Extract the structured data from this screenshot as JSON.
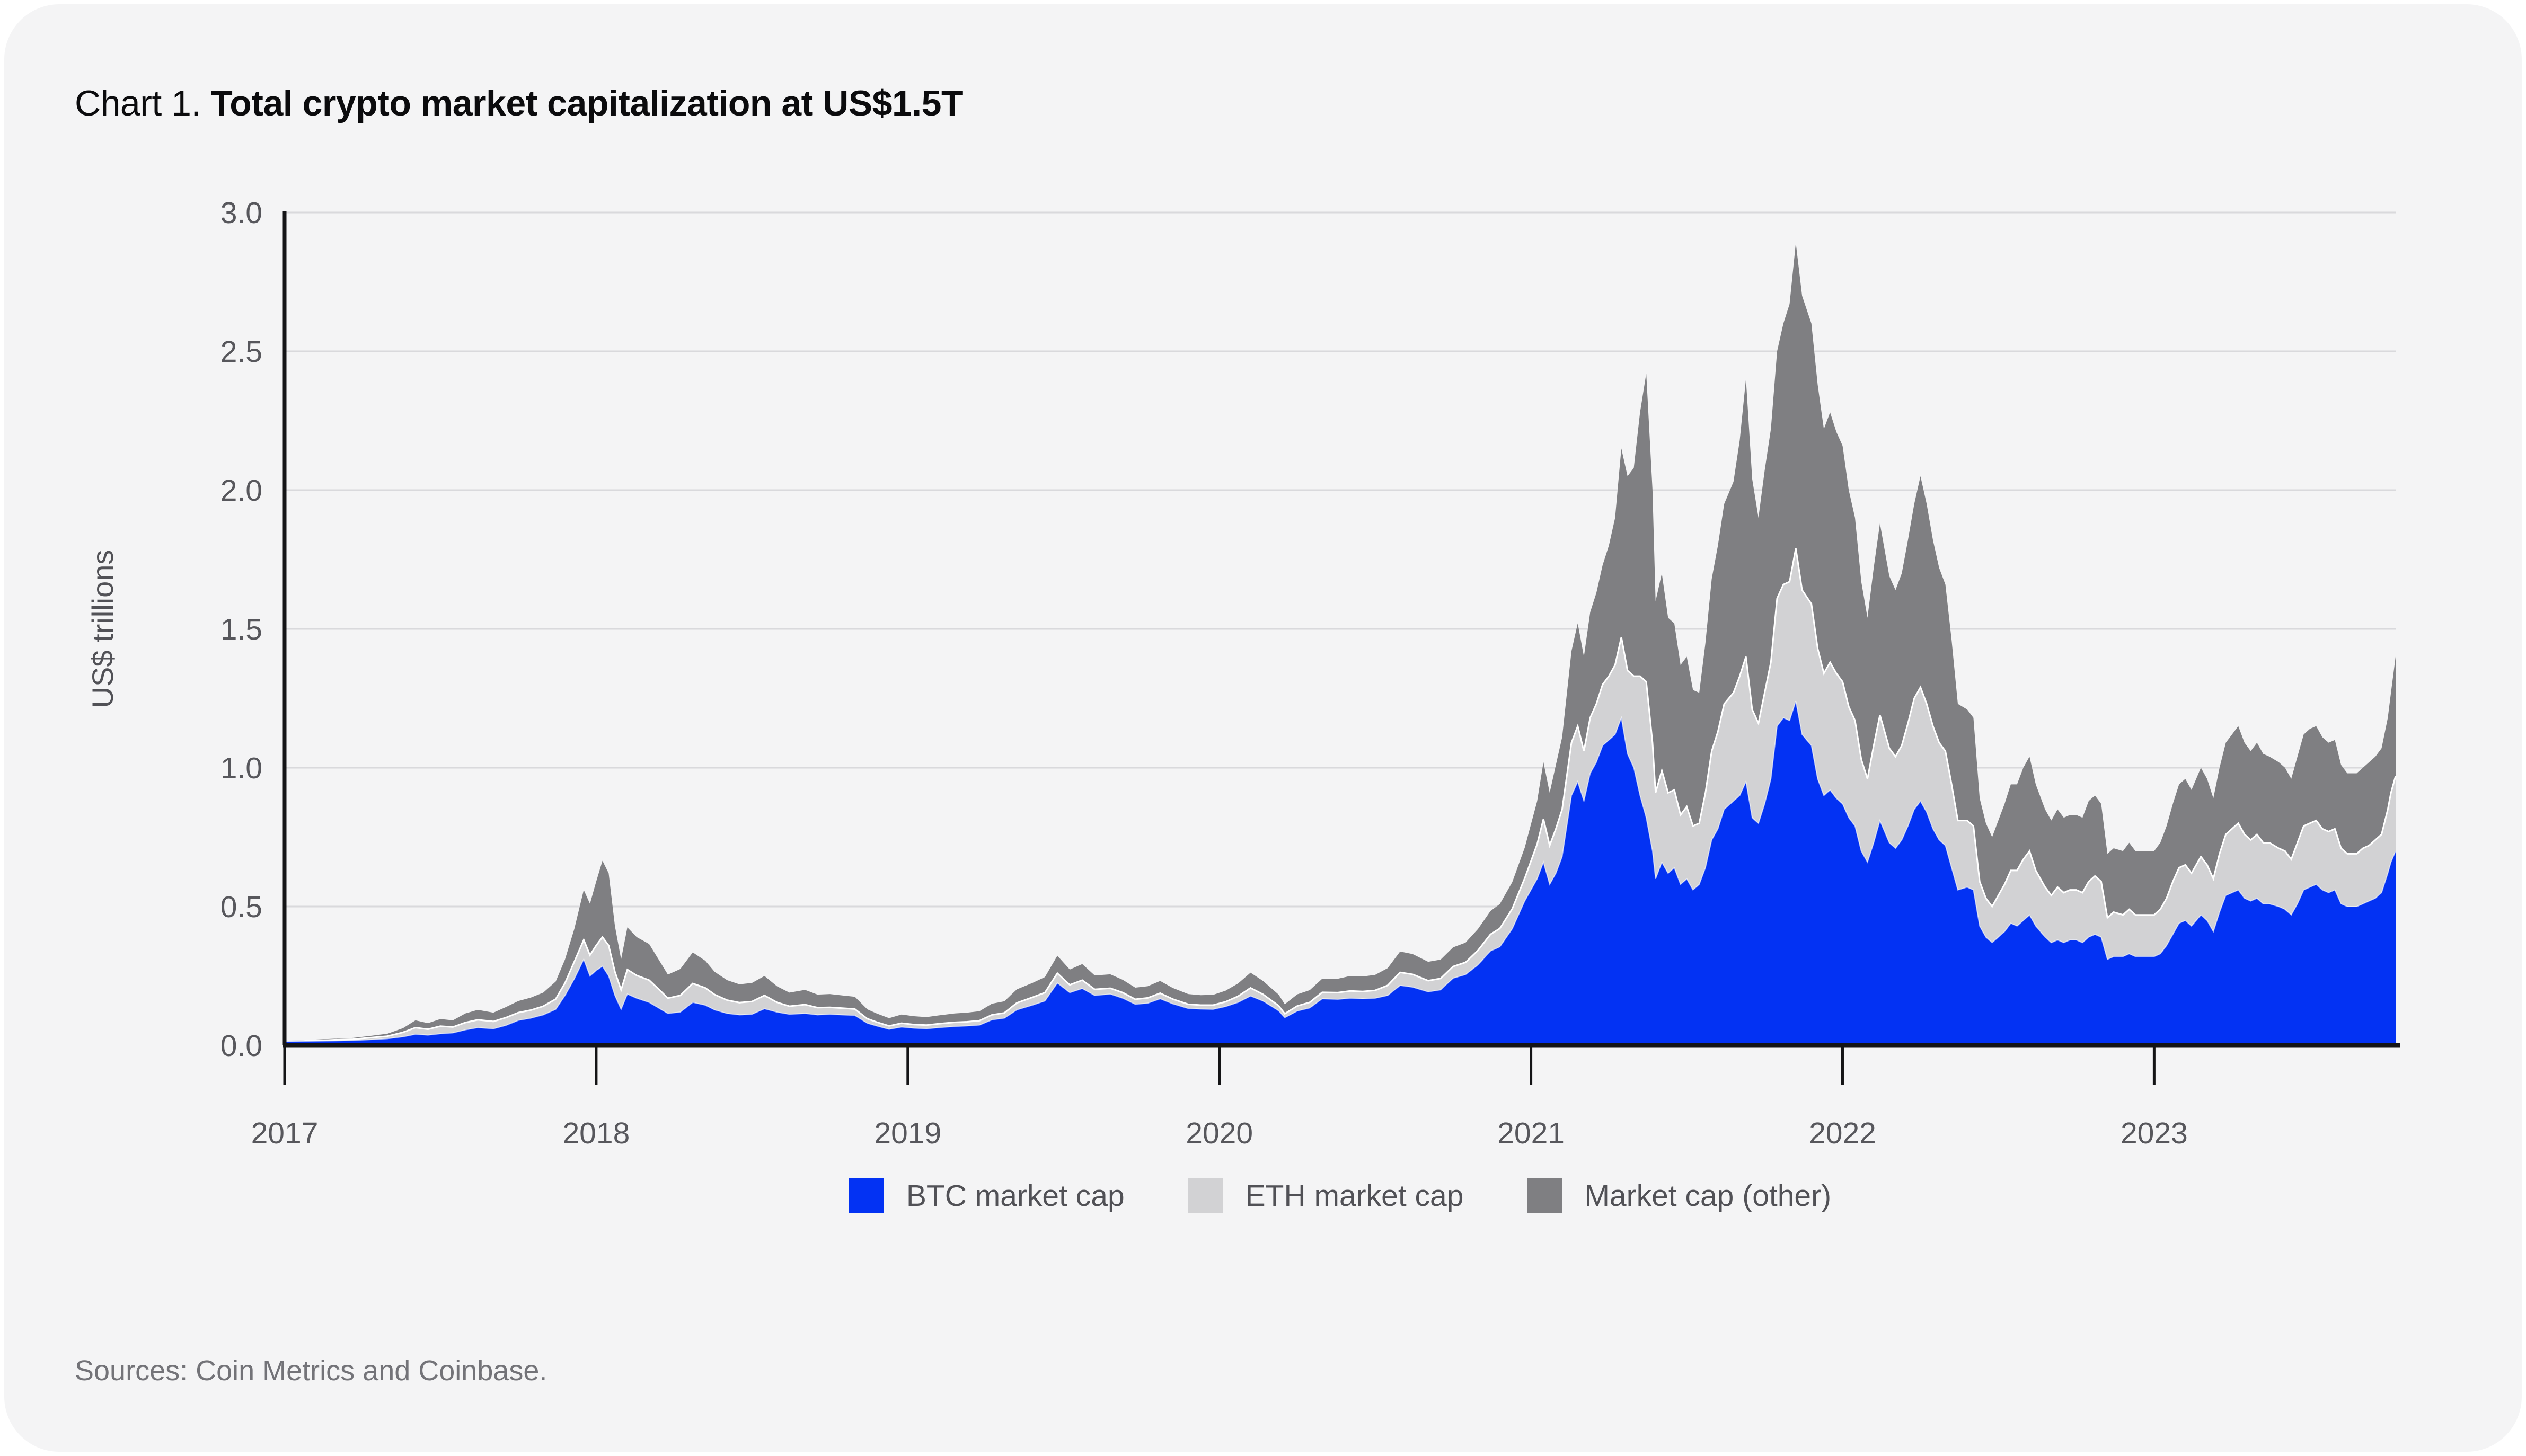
{
  "page": {
    "title_prefix": "Chart 1. ",
    "title_main": "Total crypto market capitalization at US$1.5T",
    "sources": "Sources: Coin Metrics and Coinbase."
  },
  "colors": {
    "card_bg": "#f4f4f5",
    "grid": "#d9d9dc",
    "axis": "#141416",
    "tick_text": "#57575c",
    "axis_title_text": "#515156",
    "series_btc": "#0332f3",
    "series_eth": "#d2d2d4",
    "series_other": "#7f7f82",
    "layer_separator": "#ffffff"
  },
  "chart_data": {
    "type": "area",
    "stacked": true,
    "title": "Total crypto market capitalization at US$1.5T",
    "xlabel": "",
    "ylabel": "US$ trillions",
    "ylim": [
      0,
      3.0
    ],
    "yticks": [
      0.0,
      0.5,
      1.0,
      1.5,
      2.0,
      2.5,
      3.0
    ],
    "xlim": [
      2017.0,
      2023.775
    ],
    "xticks": [
      2017,
      2018,
      2019,
      2020,
      2021,
      2022,
      2023
    ],
    "grid": true,
    "legend_position": "bottom",
    "units": "US$ trillions",
    "series": [
      {
        "key": "btc",
        "name": "BTC market cap",
        "color": "#0332f3"
      },
      {
        "key": "eth",
        "name": "ETH market cap",
        "color": "#d2d2d4"
      },
      {
        "key": "other",
        "name": "Market cap (other)",
        "color": "#7f7f82"
      }
    ],
    "points_format": [
      "year_decimal",
      "btc",
      "eth",
      "other"
    ],
    "points": [
      [
        2017.0,
        0.014,
        0.001,
        0.003
      ],
      [
        2017.06,
        0.015,
        0.001,
        0.003
      ],
      [
        2017.12,
        0.016,
        0.002,
        0.004
      ],
      [
        2017.18,
        0.017,
        0.004,
        0.004
      ],
      [
        2017.22,
        0.018,
        0.004,
        0.005
      ],
      [
        2017.28,
        0.021,
        0.007,
        0.007
      ],
      [
        2017.33,
        0.024,
        0.009,
        0.009
      ],
      [
        2017.38,
        0.031,
        0.016,
        0.015
      ],
      [
        2017.42,
        0.04,
        0.024,
        0.026
      ],
      [
        2017.46,
        0.037,
        0.021,
        0.022
      ],
      [
        2017.5,
        0.042,
        0.027,
        0.026
      ],
      [
        2017.54,
        0.045,
        0.021,
        0.024
      ],
      [
        2017.58,
        0.056,
        0.026,
        0.033
      ],
      [
        2017.62,
        0.064,
        0.028,
        0.036
      ],
      [
        2017.67,
        0.06,
        0.026,
        0.032
      ],
      [
        2017.71,
        0.072,
        0.028,
        0.038
      ],
      [
        2017.75,
        0.09,
        0.028,
        0.042
      ],
      [
        2017.79,
        0.098,
        0.029,
        0.045
      ],
      [
        2017.83,
        0.11,
        0.031,
        0.049
      ],
      [
        2017.87,
        0.13,
        0.037,
        0.063
      ],
      [
        2017.9,
        0.18,
        0.045,
        0.085
      ],
      [
        2017.93,
        0.24,
        0.062,
        0.118
      ],
      [
        2017.96,
        0.31,
        0.07,
        0.18
      ],
      [
        2017.98,
        0.25,
        0.075,
        0.185
      ],
      [
        2018.0,
        0.27,
        0.09,
        0.23
      ],
      [
        2018.02,
        0.285,
        0.105,
        0.275
      ],
      [
        2018.04,
        0.25,
        0.11,
        0.26
      ],
      [
        2018.06,
        0.18,
        0.085,
        0.165
      ],
      [
        2018.08,
        0.13,
        0.07,
        0.11
      ],
      [
        2018.1,
        0.185,
        0.088,
        0.152
      ],
      [
        2018.13,
        0.17,
        0.082,
        0.138
      ],
      [
        2018.17,
        0.155,
        0.08,
        0.13
      ],
      [
        2018.2,
        0.135,
        0.068,
        0.107
      ],
      [
        2018.23,
        0.115,
        0.055,
        0.085
      ],
      [
        2018.27,
        0.12,
        0.06,
        0.095
      ],
      [
        2018.31,
        0.155,
        0.068,
        0.112
      ],
      [
        2018.35,
        0.145,
        0.062,
        0.098
      ],
      [
        2018.38,
        0.128,
        0.055,
        0.082
      ],
      [
        2018.42,
        0.115,
        0.048,
        0.072
      ],
      [
        2018.46,
        0.11,
        0.044,
        0.066
      ],
      [
        2018.5,
        0.112,
        0.046,
        0.067
      ],
      [
        2018.54,
        0.132,
        0.048,
        0.07
      ],
      [
        2018.58,
        0.12,
        0.035,
        0.058
      ],
      [
        2018.62,
        0.112,
        0.029,
        0.049
      ],
      [
        2018.67,
        0.115,
        0.032,
        0.053
      ],
      [
        2018.71,
        0.11,
        0.026,
        0.047
      ],
      [
        2018.75,
        0.112,
        0.025,
        0.048
      ],
      [
        2018.79,
        0.11,
        0.024,
        0.046
      ],
      [
        2018.83,
        0.108,
        0.023,
        0.044
      ],
      [
        2018.87,
        0.08,
        0.016,
        0.034
      ],
      [
        2018.9,
        0.07,
        0.014,
        0.031
      ],
      [
        2018.94,
        0.058,
        0.012,
        0.028
      ],
      [
        2018.98,
        0.066,
        0.014,
        0.031
      ],
      [
        2019.02,
        0.062,
        0.013,
        0.03
      ],
      [
        2019.06,
        0.06,
        0.013,
        0.029
      ],
      [
        2019.1,
        0.064,
        0.014,
        0.03
      ],
      [
        2019.15,
        0.068,
        0.015,
        0.032
      ],
      [
        2019.19,
        0.07,
        0.015,
        0.033
      ],
      [
        2019.23,
        0.073,
        0.016,
        0.034
      ],
      [
        2019.27,
        0.092,
        0.018,
        0.04
      ],
      [
        2019.31,
        0.098,
        0.019,
        0.042
      ],
      [
        2019.35,
        0.128,
        0.025,
        0.049
      ],
      [
        2019.4,
        0.145,
        0.028,
        0.052
      ],
      [
        2019.44,
        0.16,
        0.03,
        0.056
      ],
      [
        2019.48,
        0.225,
        0.035,
        0.063
      ],
      [
        2019.52,
        0.19,
        0.028,
        0.055
      ],
      [
        2019.56,
        0.205,
        0.03,
        0.058
      ],
      [
        2019.6,
        0.18,
        0.022,
        0.05
      ],
      [
        2019.65,
        0.185,
        0.021,
        0.05
      ],
      [
        2019.69,
        0.17,
        0.02,
        0.046
      ],
      [
        2019.73,
        0.148,
        0.018,
        0.042
      ],
      [
        2019.77,
        0.152,
        0.019,
        0.042
      ],
      [
        2019.81,
        0.168,
        0.02,
        0.044
      ],
      [
        2019.85,
        0.15,
        0.017,
        0.04
      ],
      [
        2019.9,
        0.133,
        0.015,
        0.037
      ],
      [
        2019.94,
        0.131,
        0.014,
        0.036
      ],
      [
        2019.98,
        0.13,
        0.015,
        0.037
      ],
      [
        2020.02,
        0.14,
        0.017,
        0.04
      ],
      [
        2020.06,
        0.155,
        0.022,
        0.046
      ],
      [
        2020.1,
        0.178,
        0.029,
        0.055
      ],
      [
        2020.14,
        0.16,
        0.024,
        0.048
      ],
      [
        2020.19,
        0.125,
        0.018,
        0.04
      ],
      [
        2020.21,
        0.1,
        0.014,
        0.034
      ],
      [
        2020.25,
        0.124,
        0.018,
        0.042
      ],
      [
        2020.29,
        0.135,
        0.02,
        0.044
      ],
      [
        2020.33,
        0.168,
        0.023,
        0.049
      ],
      [
        2020.38,
        0.166,
        0.024,
        0.05
      ],
      [
        2020.42,
        0.17,
        0.026,
        0.054
      ],
      [
        2020.46,
        0.168,
        0.026,
        0.054
      ],
      [
        2020.5,
        0.17,
        0.028,
        0.056
      ],
      [
        2020.54,
        0.18,
        0.036,
        0.062
      ],
      [
        2020.58,
        0.216,
        0.047,
        0.075
      ],
      [
        2020.62,
        0.21,
        0.046,
        0.073
      ],
      [
        2020.67,
        0.193,
        0.04,
        0.068
      ],
      [
        2020.71,
        0.2,
        0.041,
        0.068
      ],
      [
        2020.75,
        0.242,
        0.042,
        0.069
      ],
      [
        2020.79,
        0.255,
        0.044,
        0.071
      ],
      [
        2020.83,
        0.29,
        0.052,
        0.077
      ],
      [
        2020.87,
        0.34,
        0.06,
        0.084
      ],
      [
        2020.9,
        0.355,
        0.066,
        0.088
      ],
      [
        2020.94,
        0.42,
        0.072,
        0.096
      ],
      [
        2020.98,
        0.52,
        0.082,
        0.11
      ],
      [
        2021.02,
        0.6,
        0.125,
        0.155
      ],
      [
        2021.04,
        0.66,
        0.155,
        0.205
      ],
      [
        2021.06,
        0.58,
        0.14,
        0.19
      ],
      [
        2021.08,
        0.62,
        0.16,
        0.23
      ],
      [
        2021.1,
        0.68,
        0.17,
        0.26
      ],
      [
        2021.13,
        0.9,
        0.19,
        0.33
      ],
      [
        2021.15,
        0.95,
        0.2,
        0.37
      ],
      [
        2021.17,
        0.88,
        0.18,
        0.34
      ],
      [
        2021.19,
        0.98,
        0.2,
        0.38
      ],
      [
        2021.21,
        1.02,
        0.21,
        0.4
      ],
      [
        2021.23,
        1.08,
        0.22,
        0.43
      ],
      [
        2021.25,
        1.1,
        0.23,
        0.47
      ],
      [
        2021.27,
        1.12,
        0.25,
        0.53
      ],
      [
        2021.29,
        1.18,
        0.29,
        0.68
      ],
      [
        2021.31,
        1.05,
        0.3,
        0.7
      ],
      [
        2021.33,
        1.0,
        0.33,
        0.75
      ],
      [
        2021.35,
        0.9,
        0.43,
        0.95
      ],
      [
        2021.37,
        0.82,
        0.49,
        1.11
      ],
      [
        2021.39,
        0.7,
        0.39,
        0.91
      ],
      [
        2021.4,
        0.6,
        0.31,
        0.69
      ],
      [
        2021.42,
        0.66,
        0.33,
        0.71
      ],
      [
        2021.44,
        0.62,
        0.29,
        0.63
      ],
      [
        2021.46,
        0.64,
        0.28,
        0.6
      ],
      [
        2021.48,
        0.58,
        0.25,
        0.54
      ],
      [
        2021.5,
        0.6,
        0.26,
        0.54
      ],
      [
        2021.52,
        0.56,
        0.23,
        0.49
      ],
      [
        2021.54,
        0.58,
        0.22,
        0.47
      ],
      [
        2021.56,
        0.64,
        0.27,
        0.54
      ],
      [
        2021.58,
        0.74,
        0.32,
        0.62
      ],
      [
        2021.6,
        0.78,
        0.35,
        0.67
      ],
      [
        2021.62,
        0.85,
        0.38,
        0.72
      ],
      [
        2021.65,
        0.88,
        0.39,
        0.76
      ],
      [
        2021.67,
        0.9,
        0.43,
        0.85
      ],
      [
        2021.69,
        0.95,
        0.45,
        1.0
      ],
      [
        2021.71,
        0.82,
        0.39,
        0.83
      ],
      [
        2021.73,
        0.8,
        0.36,
        0.74
      ],
      [
        2021.75,
        0.87,
        0.4,
        0.8
      ],
      [
        2021.77,
        0.96,
        0.42,
        0.84
      ],
      [
        2021.79,
        1.15,
        0.46,
        0.89
      ],
      [
        2021.81,
        1.18,
        0.48,
        0.94
      ],
      [
        2021.83,
        1.17,
        0.5,
        1.0
      ],
      [
        2021.85,
        1.24,
        0.55,
        1.1
      ],
      [
        2021.87,
        1.12,
        0.52,
        1.06
      ],
      [
        2021.9,
        1.08,
        0.51,
        1.01
      ],
      [
        2021.92,
        0.96,
        0.47,
        0.95
      ],
      [
        2021.94,
        0.9,
        0.44,
        0.88
      ],
      [
        2021.96,
        0.92,
        0.46,
        0.9
      ],
      [
        2021.98,
        0.89,
        0.45,
        0.87
      ],
      [
        2022.0,
        0.87,
        0.44,
        0.85
      ],
      [
        2022.02,
        0.82,
        0.4,
        0.78
      ],
      [
        2022.04,
        0.79,
        0.38,
        0.73
      ],
      [
        2022.06,
        0.7,
        0.33,
        0.64
      ],
      [
        2022.08,
        0.66,
        0.3,
        0.58
      ],
      [
        2022.1,
        0.73,
        0.35,
        0.64
      ],
      [
        2022.12,
        0.81,
        0.38,
        0.69
      ],
      [
        2022.15,
        0.73,
        0.34,
        0.62
      ],
      [
        2022.17,
        0.71,
        0.33,
        0.6
      ],
      [
        2022.19,
        0.74,
        0.34,
        0.62
      ],
      [
        2022.21,
        0.79,
        0.37,
        0.66
      ],
      [
        2022.23,
        0.85,
        0.4,
        0.7
      ],
      [
        2022.25,
        0.88,
        0.41,
        0.76
      ],
      [
        2022.27,
        0.84,
        0.39,
        0.72
      ],
      [
        2022.29,
        0.78,
        0.37,
        0.67
      ],
      [
        2022.31,
        0.74,
        0.35,
        0.63
      ],
      [
        2022.33,
        0.72,
        0.34,
        0.6
      ],
      [
        2022.35,
        0.64,
        0.3,
        0.52
      ],
      [
        2022.37,
        0.56,
        0.25,
        0.42
      ],
      [
        2022.4,
        0.57,
        0.24,
        0.4
      ],
      [
        2022.42,
        0.56,
        0.23,
        0.39
      ],
      [
        2022.44,
        0.43,
        0.16,
        0.3
      ],
      [
        2022.46,
        0.39,
        0.14,
        0.27
      ],
      [
        2022.48,
        0.37,
        0.13,
        0.25
      ],
      [
        2022.5,
        0.39,
        0.15,
        0.27
      ],
      [
        2022.52,
        0.41,
        0.17,
        0.29
      ],
      [
        2022.54,
        0.44,
        0.19,
        0.31
      ],
      [
        2022.56,
        0.43,
        0.2,
        0.31
      ],
      [
        2022.58,
        0.45,
        0.22,
        0.33
      ],
      [
        2022.6,
        0.47,
        0.23,
        0.34
      ],
      [
        2022.62,
        0.43,
        0.2,
        0.31
      ],
      [
        2022.65,
        0.39,
        0.18,
        0.28
      ],
      [
        2022.67,
        0.37,
        0.17,
        0.27
      ],
      [
        2022.69,
        0.38,
        0.19,
        0.28
      ],
      [
        2022.71,
        0.37,
        0.18,
        0.27
      ],
      [
        2022.73,
        0.38,
        0.18,
        0.27
      ],
      [
        2022.75,
        0.38,
        0.18,
        0.27
      ],
      [
        2022.77,
        0.37,
        0.18,
        0.27
      ],
      [
        2022.79,
        0.39,
        0.2,
        0.29
      ],
      [
        2022.81,
        0.4,
        0.21,
        0.29
      ],
      [
        2022.83,
        0.39,
        0.2,
        0.28
      ],
      [
        2022.85,
        0.31,
        0.15,
        0.23
      ],
      [
        2022.87,
        0.32,
        0.16,
        0.23
      ],
      [
        2022.9,
        0.32,
        0.15,
        0.23
      ],
      [
        2022.92,
        0.33,
        0.16,
        0.24
      ],
      [
        2022.94,
        0.32,
        0.15,
        0.23
      ],
      [
        2022.96,
        0.32,
        0.15,
        0.23
      ],
      [
        2023.0,
        0.32,
        0.15,
        0.23
      ],
      [
        2023.02,
        0.33,
        0.16,
        0.24
      ],
      [
        2023.04,
        0.36,
        0.17,
        0.26
      ],
      [
        2023.06,
        0.4,
        0.19,
        0.28
      ],
      [
        2023.08,
        0.44,
        0.2,
        0.3
      ],
      [
        2023.1,
        0.45,
        0.2,
        0.31
      ],
      [
        2023.12,
        0.43,
        0.19,
        0.3
      ],
      [
        2023.15,
        0.47,
        0.21,
        0.32
      ],
      [
        2023.17,
        0.45,
        0.2,
        0.31
      ],
      [
        2023.19,
        0.41,
        0.19,
        0.29
      ],
      [
        2023.21,
        0.48,
        0.21,
        0.31
      ],
      [
        2023.23,
        0.54,
        0.22,
        0.33
      ],
      [
        2023.25,
        0.55,
        0.23,
        0.34
      ],
      [
        2023.27,
        0.56,
        0.24,
        0.35
      ],
      [
        2023.29,
        0.53,
        0.23,
        0.33
      ],
      [
        2023.31,
        0.52,
        0.22,
        0.32
      ],
      [
        2023.33,
        0.53,
        0.23,
        0.33
      ],
      [
        2023.35,
        0.51,
        0.22,
        0.32
      ],
      [
        2023.37,
        0.51,
        0.22,
        0.31
      ],
      [
        2023.4,
        0.5,
        0.21,
        0.31
      ],
      [
        2023.42,
        0.49,
        0.21,
        0.3
      ],
      [
        2023.44,
        0.47,
        0.2,
        0.29
      ],
      [
        2023.46,
        0.51,
        0.22,
        0.31
      ],
      [
        2023.48,
        0.56,
        0.23,
        0.33
      ],
      [
        2023.5,
        0.57,
        0.23,
        0.34
      ],
      [
        2023.52,
        0.58,
        0.23,
        0.34
      ],
      [
        2023.54,
        0.56,
        0.22,
        0.33
      ],
      [
        2023.56,
        0.55,
        0.22,
        0.32
      ],
      [
        2023.58,
        0.56,
        0.22,
        0.32
      ],
      [
        2023.6,
        0.51,
        0.2,
        0.3
      ],
      [
        2023.62,
        0.5,
        0.19,
        0.29
      ],
      [
        2023.65,
        0.5,
        0.19,
        0.29
      ],
      [
        2023.67,
        0.51,
        0.2,
        0.29
      ],
      [
        2023.69,
        0.52,
        0.2,
        0.3
      ],
      [
        2023.71,
        0.53,
        0.21,
        0.3
      ],
      [
        2023.73,
        0.55,
        0.21,
        0.31
      ],
      [
        2023.75,
        0.62,
        0.23,
        0.33
      ],
      [
        2023.76,
        0.66,
        0.25,
        0.36
      ],
      [
        2023.775,
        0.7,
        0.27,
        0.43
      ]
    ]
  }
}
